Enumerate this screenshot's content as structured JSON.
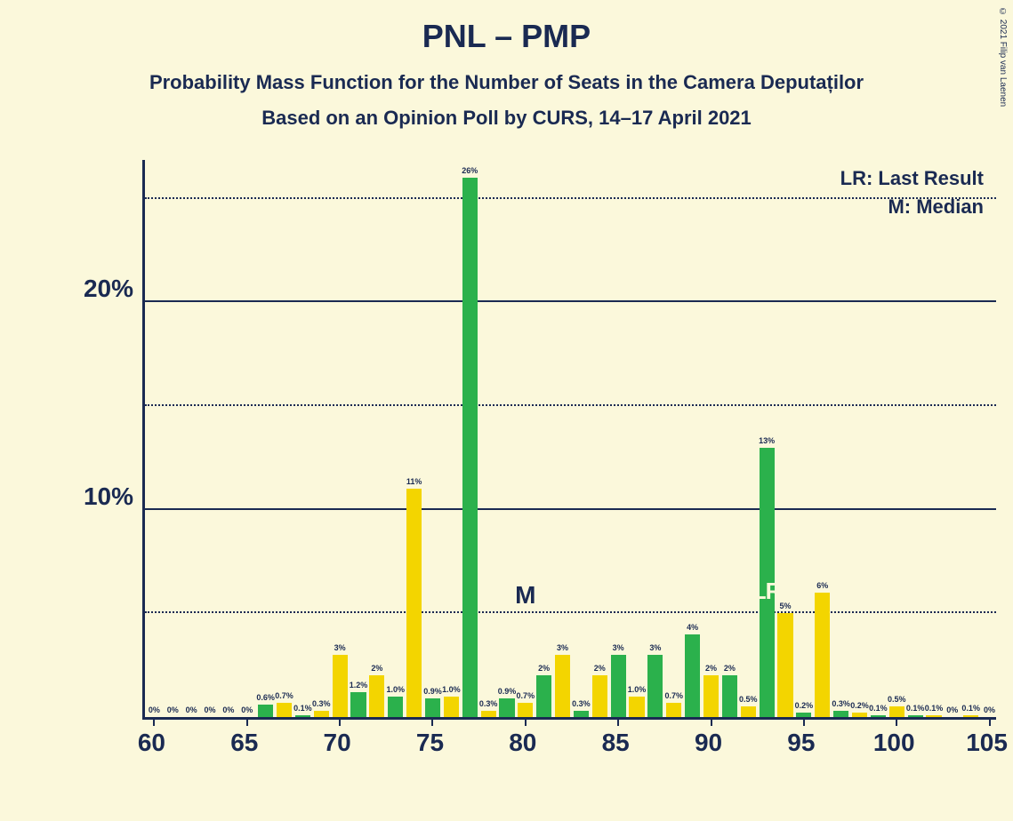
{
  "copyright": "© 2021 Filip van Laenen",
  "title": "PNL – PMP",
  "subtitle1": "Probability Mass Function for the Number of Seats in the Camera Deputaților",
  "subtitle2": "Based on an Opinion Poll by CURS, 14–17 April 2021",
  "legend": {
    "lr": "LR: Last Result",
    "m": "M: Median"
  },
  "chart": {
    "type": "bar",
    "background_color": "#fbf8db",
    "text_color": "#1a2a52",
    "colors": {
      "green": "#2bb14c",
      "yellow": "#f3d500"
    },
    "x_range": [
      60,
      105
    ],
    "x_ticks": [
      60,
      65,
      70,
      75,
      80,
      85,
      90,
      95,
      100,
      105
    ],
    "y_max": 27,
    "y_ticks_major": [
      10,
      20
    ],
    "y_ticks_minor": [
      5,
      15,
      25
    ],
    "y_tick_labels": {
      "10": "10%",
      "20": "20%"
    },
    "median_x": 80,
    "lr_x": 93,
    "bars": [
      {
        "x": 60,
        "v": 0,
        "c": "green",
        "l": "0%"
      },
      {
        "x": 61,
        "v": 0,
        "c": "yellow",
        "l": "0%"
      },
      {
        "x": 62,
        "v": 0,
        "c": "green",
        "l": "0%"
      },
      {
        "x": 63,
        "v": 0,
        "c": "yellow",
        "l": "0%"
      },
      {
        "x": 64,
        "v": 0,
        "c": "green",
        "l": "0%"
      },
      {
        "x": 65,
        "v": 0,
        "c": "yellow",
        "l": "0%"
      },
      {
        "x": 66,
        "v": 0.6,
        "c": "green",
        "l": "0.6%"
      },
      {
        "x": 67,
        "v": 0.7,
        "c": "yellow",
        "l": "0.7%"
      },
      {
        "x": 68,
        "v": 0.1,
        "c": "green",
        "l": "0.1%"
      },
      {
        "x": 69,
        "v": 0.3,
        "c": "yellow",
        "l": "0.3%"
      },
      {
        "x": 70,
        "v": 3,
        "c": "yellow",
        "l": "3%"
      },
      {
        "x": 71,
        "v": 1.2,
        "c": "green",
        "l": "1.2%"
      },
      {
        "x": 72,
        "v": 2,
        "c": "yellow",
        "l": "2%"
      },
      {
        "x": 73,
        "v": 1.0,
        "c": "green",
        "l": "1.0%"
      },
      {
        "x": 74,
        "v": 11,
        "c": "yellow",
        "l": "11%"
      },
      {
        "x": 75,
        "v": 0.9,
        "c": "green",
        "l": "0.9%"
      },
      {
        "x": 76,
        "v": 1.0,
        "c": "yellow",
        "l": "1.0%"
      },
      {
        "x": 77,
        "v": 26,
        "c": "green",
        "l": "26%"
      },
      {
        "x": 78,
        "v": 0.3,
        "c": "yellow",
        "l": "0.3%"
      },
      {
        "x": 79,
        "v": 0.9,
        "c": "green",
        "l": "0.9%"
      },
      {
        "x": 80,
        "v": 0.7,
        "c": "yellow",
        "l": "0.7%"
      },
      {
        "x": 81,
        "v": 2,
        "c": "green",
        "l": "2%"
      },
      {
        "x": 82,
        "v": 3,
        "c": "yellow",
        "l": "3%"
      },
      {
        "x": 83,
        "v": 0.3,
        "c": "green",
        "l": "0.3%"
      },
      {
        "x": 84,
        "v": 2,
        "c": "yellow",
        "l": "2%"
      },
      {
        "x": 85,
        "v": 3,
        "c": "green",
        "l": "3%"
      },
      {
        "x": 86,
        "v": 1.0,
        "c": "yellow",
        "l": "1.0%"
      },
      {
        "x": 87,
        "v": 3,
        "c": "green",
        "l": "3%"
      },
      {
        "x": 88,
        "v": 0.7,
        "c": "yellow",
        "l": "0.7%"
      },
      {
        "x": 89,
        "v": 4,
        "c": "green",
        "l": "4%"
      },
      {
        "x": 90,
        "v": 2,
        "c": "yellow",
        "l": "2%"
      },
      {
        "x": 91,
        "v": 2,
        "c": "green",
        "l": "2%"
      },
      {
        "x": 92,
        "v": 0.5,
        "c": "yellow",
        "l": "0.5%"
      },
      {
        "x": 93,
        "v": 13,
        "c": "green",
        "l": "13%"
      },
      {
        "x": 94,
        "v": 5,
        "c": "yellow",
        "l": "5%"
      },
      {
        "x": 95,
        "v": 0.2,
        "c": "green",
        "l": "0.2%"
      },
      {
        "x": 96,
        "v": 6,
        "c": "yellow",
        "l": "6%"
      },
      {
        "x": 97,
        "v": 0.3,
        "c": "green",
        "l": "0.3%"
      },
      {
        "x": 98,
        "v": 0.2,
        "c": "yellow",
        "l": "0.2%"
      },
      {
        "x": 99,
        "v": 0.1,
        "c": "green",
        "l": "0.1%"
      },
      {
        "x": 100,
        "v": 0.5,
        "c": "yellow",
        "l": "0.5%"
      },
      {
        "x": 101,
        "v": 0.1,
        "c": "green",
        "l": "0.1%"
      },
      {
        "x": 102,
        "v": 0.1,
        "c": "yellow",
        "l": "0.1%"
      },
      {
        "x": 103,
        "v": 0,
        "c": "green",
        "l": "0%"
      },
      {
        "x": 104,
        "v": 0.1,
        "c": "yellow",
        "l": "0.1%"
      },
      {
        "x": 105,
        "v": 0,
        "c": "green",
        "l": "0%"
      }
    ]
  }
}
